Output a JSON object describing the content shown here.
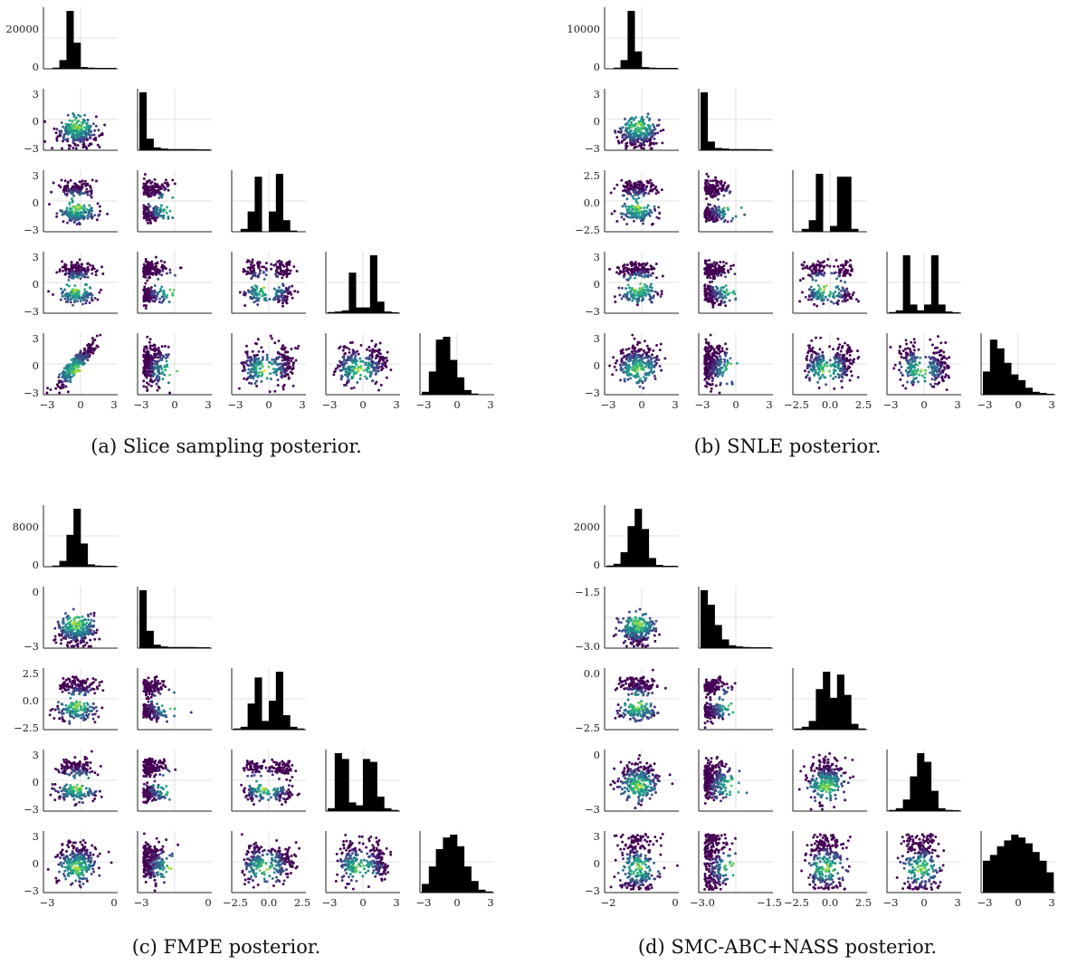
{
  "figure": {
    "panels": [
      {
        "caption": "(a) Slice sampling posterior."
      },
      {
        "caption": "(b) SNLE posterior."
      },
      {
        "caption": "(c) FMPE posterior."
      },
      {
        "caption": "(d) SMC-ABC+NASS posterior."
      }
    ]
  },
  "chart_data": [
    {
      "type": "scatter",
      "subtype": "pairplot-corner",
      "title": "(a) Slice sampling posterior.",
      "colormap": "viridis",
      "grid": true,
      "dims": 5,
      "diag_type": "histogram",
      "diag_yticks": [
        [
          "0",
          "20000"
        ],
        [],
        [],
        [],
        []
      ],
      "row_yticks": [
        null,
        [
          "3",
          "0",
          "−3"
        ],
        [
          "3",
          "0",
          "−3"
        ],
        [
          "3",
          "0",
          "−3"
        ],
        [
          "3",
          "0",
          "−3"
        ]
      ],
      "col_xticks": [
        [
          "−3",
          "0",
          "3"
        ],
        [
          "−3",
          "0",
          "3"
        ],
        [
          "−3",
          "0",
          "3"
        ],
        [
          "−3",
          "0",
          "3"
        ],
        [
          "−3",
          "0",
          "3"
        ]
      ],
      "diag_hist_heights": [
        [
          0,
          0.02,
          0.15,
          1.0,
          0.45,
          0.03,
          0.02,
          0.01,
          0.01,
          0.01
        ],
        [
          1.0,
          0.2,
          0.05,
          0.03,
          0.02,
          0.02,
          0.02,
          0.02,
          0.01,
          0.01
        ],
        [
          0,
          0.05,
          0.35,
          0.95,
          0.0,
          0.35,
          1.0,
          0.2,
          0.02,
          0
        ],
        [
          0.02,
          0.03,
          0.05,
          0.7,
          0.1,
          0.1,
          1.0,
          0.2,
          0.03,
          0.01
        ],
        [
          0.05,
          0.4,
          0.95,
          1.0,
          0.6,
          0.3,
          0.08,
          0.02,
          0,
          0
        ]
      ]
    },
    {
      "type": "scatter",
      "subtype": "pairplot-corner",
      "title": "(b) SNLE posterior.",
      "colormap": "viridis",
      "grid": true,
      "dims": 5,
      "diag_type": "histogram",
      "diag_yticks": [
        [
          "0",
          "10000"
        ],
        [],
        [],
        [],
        []
      ],
      "row_yticks": [
        null,
        [
          "3",
          "0",
          "−3"
        ],
        [
          "2.5",
          "0.0",
          "−2.5"
        ],
        [
          "3",
          "0",
          "−3"
        ],
        [
          "3",
          "0",
          "−3"
        ]
      ],
      "col_xticks": [
        [
          "−3",
          "0",
          "3"
        ],
        [
          "−3",
          "0",
          "3"
        ],
        [
          "−2.5",
          "0.0",
          "2.5"
        ],
        [
          "−3",
          "0",
          "3"
        ],
        [
          "−3",
          "0",
          "3"
        ]
      ],
      "diag_hist_heights": [
        [
          0,
          0.02,
          0.15,
          1.0,
          0.3,
          0.03,
          0.02,
          0.01,
          0.01,
          0.01
        ],
        [
          1.0,
          0.15,
          0.04,
          0.03,
          0.02,
          0.02,
          0.02,
          0.02,
          0.01,
          0.01
        ],
        [
          0,
          0.05,
          0.2,
          1.0,
          0.0,
          0.1,
          0.95,
          0.95,
          0.05,
          0
        ],
        [
          0.02,
          0.05,
          1.0,
          0.15,
          0.05,
          0.15,
          1.0,
          0.15,
          0.03,
          0.01
        ],
        [
          0.4,
          0.95,
          0.8,
          0.55,
          0.35,
          0.25,
          0.12,
          0.05,
          0.03,
          0.01
        ]
      ]
    },
    {
      "type": "scatter",
      "subtype": "pairplot-corner",
      "title": "(c) FMPE posterior.",
      "colormap": "viridis",
      "grid": true,
      "dims": 5,
      "diag_type": "histogram",
      "diag_yticks": [
        [
          "0",
          "8000"
        ],
        [],
        [],
        [],
        []
      ],
      "row_yticks": [
        null,
        [
          "0",
          "−3"
        ],
        [
          "2.5",
          "0.0",
          "−2.5"
        ],
        [
          "3",
          "0",
          "−3"
        ],
        [
          "3",
          "0",
          "−3"
        ]
      ],
      "col_xticks": [
        [
          "−3",
          "0"
        ],
        [
          "−3",
          "0"
        ],
        [
          "−2.5",
          "0.0",
          "2.5"
        ],
        [
          "−3",
          "0",
          "3"
        ],
        [
          "−3",
          "0",
          "3"
        ]
      ],
      "diag_hist_heights": [
        [
          0,
          0.02,
          0.1,
          0.55,
          1.0,
          0.4,
          0.04,
          0.02,
          0.01,
          0.01
        ],
        [
          1.0,
          0.3,
          0.06,
          0.03,
          0.02,
          0.02,
          0.02,
          0.02,
          0.01,
          0.01
        ],
        [
          0.02,
          0.05,
          0.45,
          0.9,
          0.15,
          0.5,
          1.0,
          0.25,
          0.05,
          0.02
        ],
        [
          0.05,
          1.0,
          0.9,
          0.15,
          0.1,
          0.9,
          0.85,
          0.25,
          0.05,
          0.02
        ],
        [
          0.15,
          0.45,
          0.75,
          0.95,
          1.0,
          0.8,
          0.45,
          0.2,
          0.05,
          0.02
        ]
      ]
    },
    {
      "type": "scatter",
      "subtype": "pairplot-corner",
      "title": "(d) SMC-ABC+NASS posterior.",
      "colormap": "viridis",
      "grid": true,
      "dims": 5,
      "diag_type": "histogram",
      "diag_yticks": [
        [
          "0",
          "2000"
        ],
        [],
        [],
        [],
        []
      ],
      "row_yticks": [
        null,
        [
          "−1.5",
          "−3.0"
        ],
        [
          "0.0",
          "−2.5"
        ],
        [
          "0",
          "−3"
        ],
        [
          "3",
          "0",
          "−3"
        ]
      ],
      "col_xticks": [
        [
          "−2",
          "0"
        ],
        [
          "−3.0",
          "−1.5"
        ],
        [
          "−2.5",
          "0.0",
          "2.5"
        ],
        [
          "−3",
          "0",
          "3"
        ],
        [
          "−3",
          "0",
          "3"
        ]
      ],
      "diag_hist_heights": [
        [
          0.02,
          0.05,
          0.25,
          0.7,
          1.0,
          0.65,
          0.15,
          0.03,
          0.01,
          0.01
        ],
        [
          1.0,
          0.75,
          0.4,
          0.15,
          0.05,
          0.03,
          0.02,
          0.01,
          0.01,
          0.01
        ],
        [
          0.02,
          0.05,
          0.15,
          0.7,
          1.0,
          0.55,
          0.95,
          0.6,
          0.1,
          0.02
        ],
        [
          0.02,
          0.05,
          0.2,
          0.6,
          1.0,
          0.85,
          0.35,
          0.05,
          0.02,
          0.01
        ],
        [
          0.55,
          0.65,
          0.8,
          0.9,
          1.0,
          0.95,
          0.85,
          0.7,
          0.55,
          0.35
        ]
      ]
    }
  ]
}
